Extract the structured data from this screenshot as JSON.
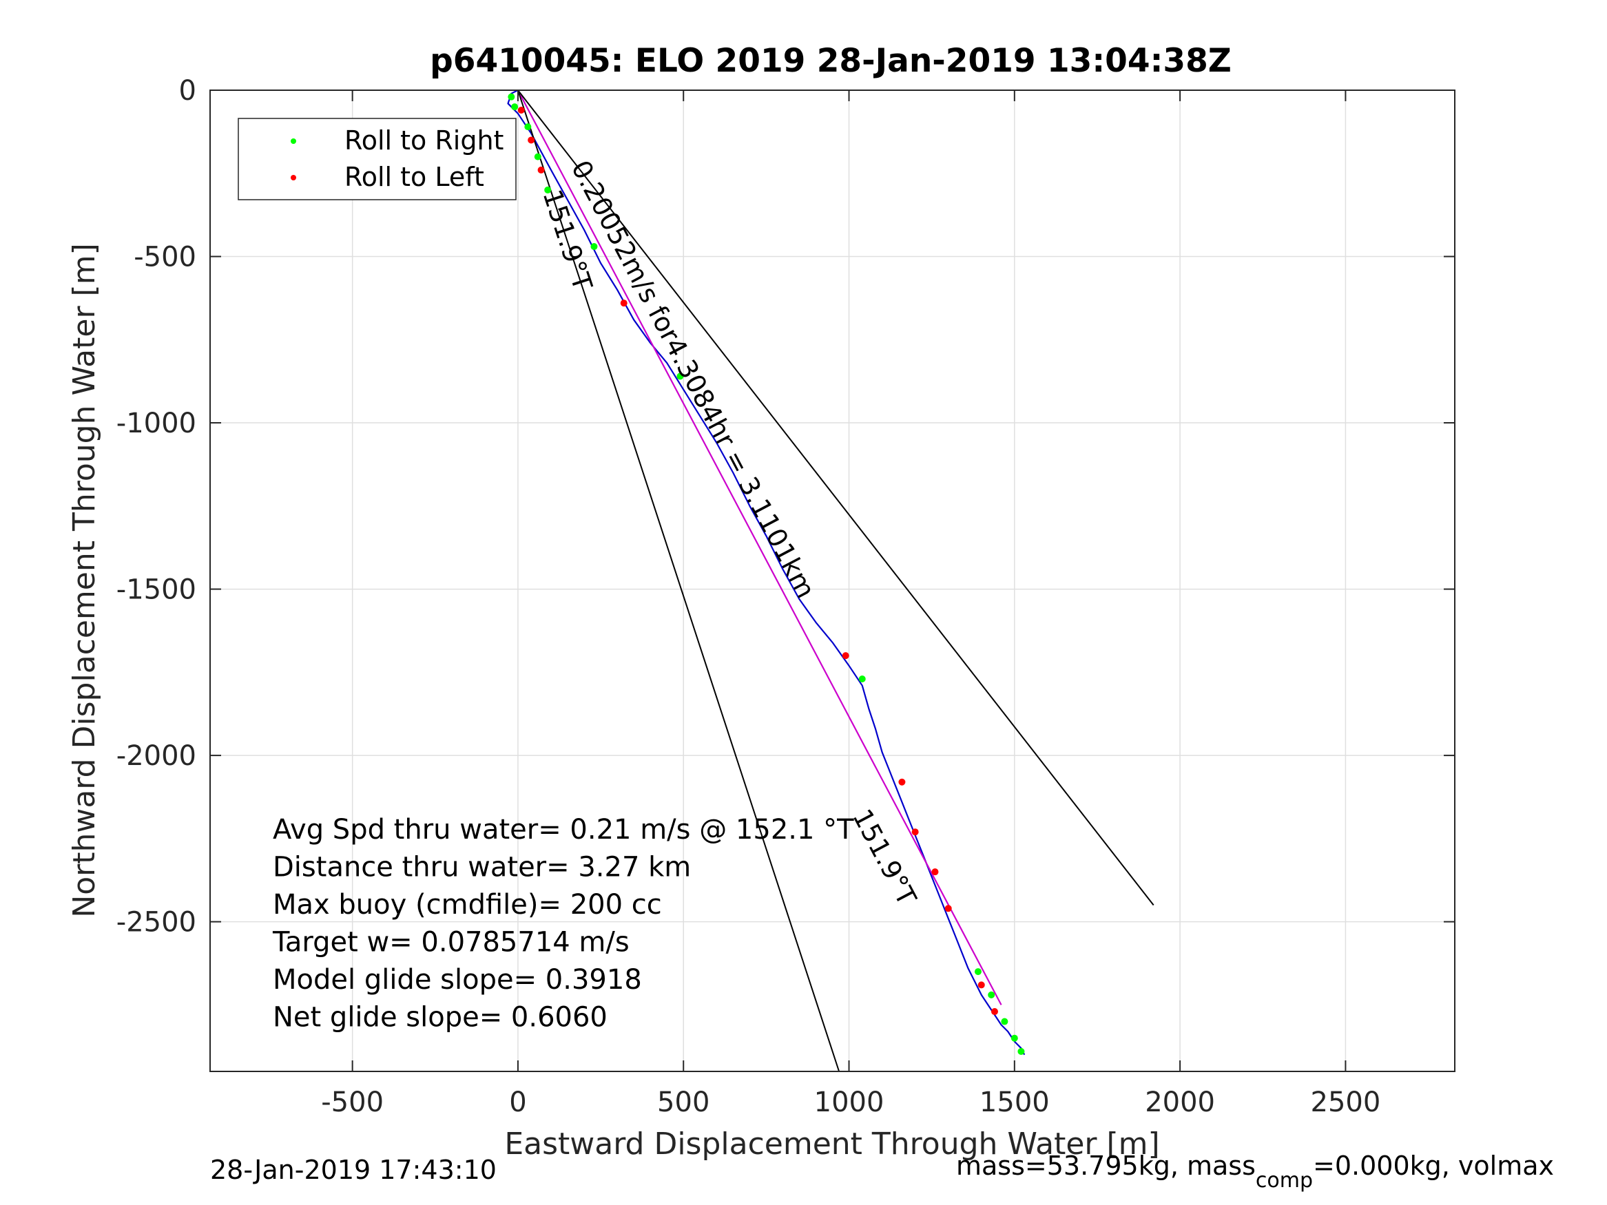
{
  "chart_data": {
    "type": "line",
    "title": "p6410045: ELO 2019 28-Jan-2019 13:04:38Z",
    "xlabel": "Eastward Displacement Through Water [m]",
    "ylabel": "Northward Displacement Through Water [m]",
    "xlim": [
      -930,
      2830
    ],
    "ylim": [
      -2950,
      0
    ],
    "xticks": [
      -500,
      0,
      500,
      1000,
      1500,
      2000,
      2500
    ],
    "yticks": [
      0,
      -500,
      -1000,
      -1500,
      -2000,
      -2500
    ],
    "xtick_labels": [
      "-500",
      "0",
      "500",
      "1000",
      "1500",
      "2000",
      "2500"
    ],
    "ytick_labels": [
      "0",
      "-500",
      "-1000",
      "-1500",
      "-2000",
      "-2500"
    ],
    "grid": true,
    "legend_position": "top-left",
    "legend": [
      {
        "label": "Roll to Right",
        "color": "#00ff00"
      },
      {
        "label": "Roll to Left",
        "color": "#ff0000"
      }
    ],
    "series": [
      {
        "name": "track",
        "color": "#0000cc",
        "x": [
          0,
          -20,
          -30,
          0,
          40,
          100,
          150,
          200,
          250,
          300,
          350,
          400,
          450,
          500,
          550,
          600,
          650,
          700,
          750,
          800,
          850,
          900,
          950,
          1000,
          1040,
          1060,
          1080,
          1100,
          1120,
          1140,
          1160,
          1180,
          1200,
          1220,
          1240,
          1260,
          1280,
          1300,
          1320,
          1340,
          1360,
          1380,
          1400,
          1420,
          1440,
          1460,
          1480,
          1500,
          1520,
          1530
        ],
        "y": [
          0,
          -10,
          -40,
          -70,
          -130,
          -240,
          -330,
          -420,
          -520,
          -600,
          -690,
          -760,
          -820,
          -900,
          -980,
          -1060,
          -1150,
          -1250,
          -1340,
          -1440,
          -1530,
          -1600,
          -1660,
          -1730,
          -1790,
          -1860,
          -1920,
          -1990,
          -2040,
          -2090,
          -2140,
          -2190,
          -2240,
          -2290,
          -2340,
          -2390,
          -2440,
          -2490,
          -2540,
          -2590,
          -2640,
          -2680,
          -2720,
          -2750,
          -2780,
          -2810,
          -2830,
          -2860,
          -2880,
          -2900
        ]
      },
      {
        "name": "heading line",
        "color": "#cc00cc",
        "x": [
          0,
          1460
        ],
        "y": [
          0,
          -2750
        ]
      },
      {
        "name": "cone left",
        "color": "#000000",
        "x": [
          0,
          970
        ],
        "y": [
          0,
          -2950
        ]
      },
      {
        "name": "cone right",
        "color": "#000000",
        "x": [
          0,
          1920
        ],
        "y": [
          0,
          -2450
        ]
      }
    ],
    "roll_right_points": {
      "x": [
        -20,
        -10,
        30,
        60,
        90,
        230,
        490,
        1040,
        1390,
        1430,
        1470,
        1500,
        1520
      ],
      "y": [
        -20,
        -50,
        -110,
        -200,
        -300,
        -470,
        -860,
        -1770,
        -2650,
        -2720,
        -2800,
        -2850,
        -2890
      ]
    },
    "roll_left_points": {
      "x": [
        10,
        40,
        70,
        320,
        990,
        1160,
        1200,
        1260,
        1300,
        1400,
        1440
      ],
      "y": [
        -60,
        -150,
        -240,
        -640,
        -1700,
        -2080,
        -2230,
        -2350,
        -2460,
        -2690,
        -2770
      ]
    },
    "annotations": [
      {
        "text": "0.20052m/s for4.3084hr = 3.1101km",
        "x": 160,
        "y": -230
      },
      {
        "text": "151.9°T",
        "x": 75,
        "y": -310
      },
      {
        "text": "151.9°T",
        "x": 1010,
        "y": -2180
      }
    ],
    "stats": [
      "Avg Spd thru water=  0.21 m/s @ 152.1 °T",
      "Distance thru water=  3.27 km",
      "Max buoy (cmdfile)= 200 cc",
      "Target w= 0.0785714 m/s",
      "Model glide slope= 0.3918",
      "Net glide slope= 0.6060"
    ]
  },
  "footer": {
    "timestamp": "28-Jan-2019 17:43:10",
    "mass_prefix": "mass=53.795kg, mass",
    "mass_sub": "comp",
    "mass_suffix": "=0.000kg, volmax"
  }
}
